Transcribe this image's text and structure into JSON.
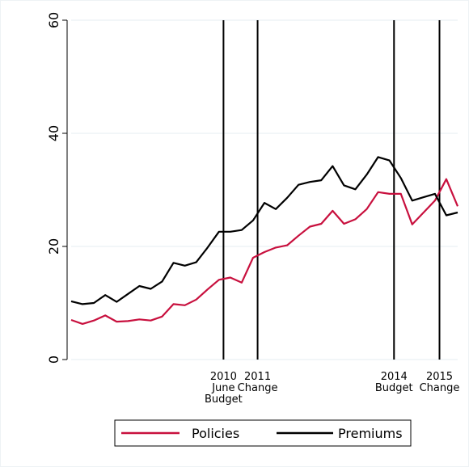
{
  "chart_data": {
    "type": "line",
    "x": [
      2007.25,
      2007.5,
      2007.75,
      2008.0,
      2008.25,
      2008.5,
      2008.75,
      2009.0,
      2009.25,
      2009.5,
      2009.75,
      2010.0,
      2010.25,
      2010.5,
      2010.75,
      2011.0,
      2011.25,
      2011.5,
      2011.75,
      2012.0,
      2012.25,
      2012.5,
      2012.75,
      2013.0,
      2013.25,
      2013.5,
      2013.75,
      2014.0,
      2014.25,
      2014.5,
      2014.75,
      2015.0,
      2015.25,
      2015.5,
      2015.75
    ],
    "series": [
      {
        "name": "Policies",
        "color": "#c8103e",
        "values": [
          7.0,
          6.3,
          6.9,
          7.8,
          6.7,
          6.8,
          7.1,
          6.9,
          7.6,
          9.8,
          9.6,
          10.6,
          12.4,
          14.1,
          14.5,
          13.6,
          18.0,
          19.0,
          19.8,
          20.2,
          21.9,
          23.5,
          24.0,
          26.3,
          24.0,
          24.8,
          26.6,
          29.6,
          29.3,
          29.3,
          23.9,
          26.0,
          28.1,
          31.9,
          27.1
        ]
      },
      {
        "name": "Premiums",
        "color": "#000000",
        "values": [
          10.3,
          9.8,
          10.0,
          11.4,
          10.2,
          11.6,
          13.0,
          12.5,
          13.8,
          17.1,
          16.6,
          17.2,
          19.8,
          22.6,
          22.6,
          22.9,
          24.6,
          27.7,
          26.6,
          28.6,
          30.9,
          31.4,
          31.7,
          34.2,
          30.8,
          30.1,
          32.7,
          35.8,
          35.2,
          32.1,
          28.1,
          28.7,
          29.3,
          25.5,
          26.0
        ]
      }
    ],
    "xlim": [
      2007.25,
      2015.75
    ],
    "xticks": [
      {
        "value": 2010.6,
        "label": "2010\nJune\nBudget"
      },
      {
        "value": 2011.35,
        "label": "2011\nChange"
      },
      {
        "value": 2014.35,
        "label": "2014\nBudget"
      },
      {
        "value": 2015.35,
        "label": "2015\nChange"
      }
    ],
    "ylim": [
      0,
      60
    ],
    "yticks": [
      0,
      20,
      40,
      60
    ],
    "grid": true,
    "legend": "bottom"
  }
}
